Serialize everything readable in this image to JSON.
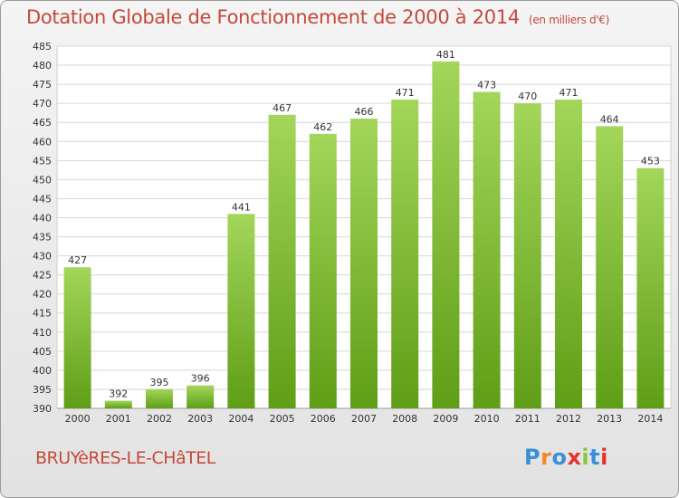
{
  "title": "Dotation Globale de Fonctionnement de 2000 à 2014",
  "subtitle": "(en milliers d'€)",
  "commune": "BRUYèRES-LE-CHâTEL",
  "logo": {
    "text": "Proxiti",
    "colors": [
      "#3b8fd6",
      "#f08a1e",
      "#3b8fd6",
      "#e5332a",
      "#8cc63f",
      "#3b8fd6",
      "#e5332a"
    ]
  },
  "colors": {
    "bar_top": "#a3d65a",
    "bar_bottom": "#5f9e16",
    "title": "#c44a3a"
  },
  "chart_data": {
    "type": "bar",
    "categories": [
      "2000",
      "2001",
      "2002",
      "2003",
      "2004",
      "2005",
      "2006",
      "2007",
      "2008",
      "2009",
      "2010",
      "2011",
      "2012",
      "2013",
      "2014"
    ],
    "values": [
      427,
      392,
      395,
      396,
      441,
      467,
      462,
      466,
      471,
      481,
      473,
      470,
      471,
      464,
      453
    ],
    "ylim": [
      390,
      485
    ],
    "yticks": [
      390,
      395,
      400,
      405,
      410,
      415,
      420,
      425,
      430,
      435,
      440,
      445,
      450,
      455,
      460,
      465,
      470,
      475,
      480,
      485
    ],
    "grid": true,
    "xlabel": "",
    "ylabel": ""
  }
}
